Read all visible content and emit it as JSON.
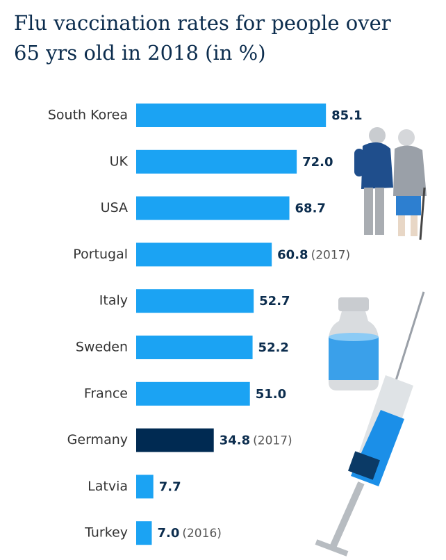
{
  "chart_data": {
    "type": "bar",
    "orientation": "horizontal",
    "title": "Flu vaccination rates for people over 65 yrs old in 2018 (in %)",
    "categories": [
      "South Korea",
      "UK",
      "USA",
      "Portugal",
      "Italy",
      "Sweden",
      "France",
      "Germany",
      "Latvia",
      "Turkey"
    ],
    "values": [
      85.1,
      72.0,
      68.7,
      60.8,
      52.7,
      52.2,
      51.0,
      34.8,
      7.7,
      7.0
    ],
    "value_labels": [
      "85.1",
      "72.0",
      "68.7",
      "60.8",
      "52.7",
      "52.2",
      "51.0",
      "34.8",
      "7.7",
      "7.0"
    ],
    "notes": [
      null,
      null,
      null,
      "(2017)",
      null,
      null,
      null,
      "(2017)",
      null,
      "(2016)"
    ],
    "colors": [
      "#1ba3f3",
      "#1ba3f3",
      "#1ba3f3",
      "#1ba3f3",
      "#1ba3f3",
      "#1ba3f3",
      "#1ba3f3",
      "#002a52",
      "#1ba3f3",
      "#1ba3f3"
    ],
    "xlim": [
      0,
      100
    ]
  }
}
